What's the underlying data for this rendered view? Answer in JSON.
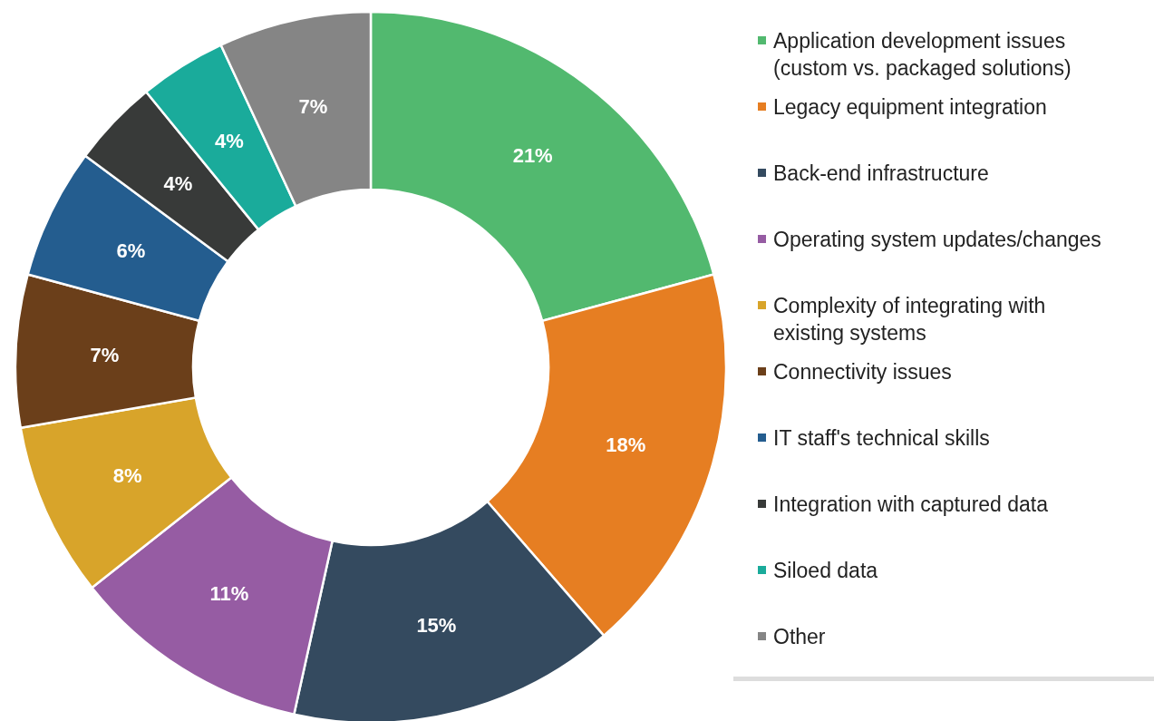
{
  "chart_data": {
    "type": "donut",
    "categories": [
      "Application development issues (custom vs. packaged solutions)",
      "Legacy equipment integration",
      "Back-end infrastructure",
      "Operating system updates/changes",
      "Complexity of integrating with existing systems",
      "Connectivity issues",
      "IT staff's technical skills",
      "Integration with captured data",
      "Siloed data",
      "Other"
    ],
    "values": [
      21,
      18,
      15,
      11,
      8,
      7,
      6,
      4,
      4,
      7
    ],
    "colors": [
      "#52b96f",
      "#e67e22",
      "#344a5f",
      "#965ca3",
      "#d8a42a",
      "#6b3f1a",
      "#245d8f",
      "#383a39",
      "#1aab9b",
      "#858585"
    ],
    "value_labels": [
      "21%",
      "18%",
      "15%",
      "11%",
      "8%",
      "7%",
      "6%",
      "4%",
      "4%",
      "7%"
    ],
    "legend": "right"
  }
}
